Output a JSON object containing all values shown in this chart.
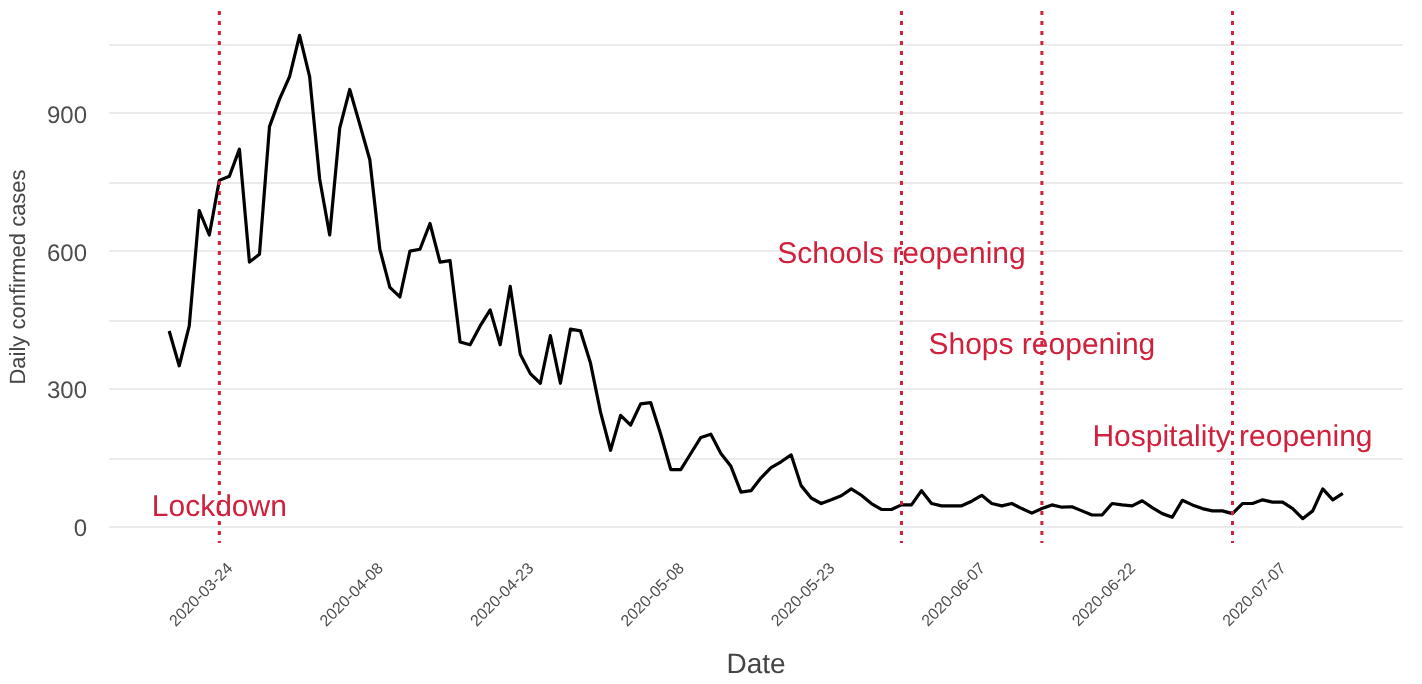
{
  "chart_data": {
    "type": "line",
    "xlabel": "Date",
    "ylabel": "Daily confirmed cases",
    "x": [
      "2020-03-18",
      "2020-03-19",
      "2020-03-20",
      "2020-03-21",
      "2020-03-22",
      "2020-03-23",
      "2020-03-24",
      "2020-03-25",
      "2020-03-26",
      "2020-03-27",
      "2020-03-28",
      "2020-03-29",
      "2020-03-30",
      "2020-03-31",
      "2020-04-01",
      "2020-04-02",
      "2020-04-03",
      "2020-04-04",
      "2020-04-05",
      "2020-04-06",
      "2020-04-07",
      "2020-04-08",
      "2020-04-09",
      "2020-04-10",
      "2020-04-11",
      "2020-04-12",
      "2020-04-13",
      "2020-04-14",
      "2020-04-15",
      "2020-04-16",
      "2020-04-17",
      "2020-04-18",
      "2020-04-19",
      "2020-04-20",
      "2020-04-21",
      "2020-04-22",
      "2020-04-23",
      "2020-04-24",
      "2020-04-25",
      "2020-04-26",
      "2020-04-27",
      "2020-04-28",
      "2020-04-29",
      "2020-04-30",
      "2020-05-01",
      "2020-05-02",
      "2020-05-03",
      "2020-05-04",
      "2020-05-05",
      "2020-05-06",
      "2020-05-07",
      "2020-05-08",
      "2020-05-09",
      "2020-05-10",
      "2020-05-11",
      "2020-05-12",
      "2020-05-13",
      "2020-05-14",
      "2020-05-15",
      "2020-05-16",
      "2020-05-17",
      "2020-05-18",
      "2020-05-19",
      "2020-05-20",
      "2020-05-21",
      "2020-05-22",
      "2020-05-23",
      "2020-05-24",
      "2020-05-25",
      "2020-05-26",
      "2020-05-27",
      "2020-05-28",
      "2020-05-29",
      "2020-05-30",
      "2020-05-31",
      "2020-06-01",
      "2020-06-02",
      "2020-06-03",
      "2020-06-04",
      "2020-06-05",
      "2020-06-06",
      "2020-06-07",
      "2020-06-08",
      "2020-06-09",
      "2020-06-10",
      "2020-06-11",
      "2020-06-12",
      "2020-06-13",
      "2020-06-14",
      "2020-06-15",
      "2020-06-16",
      "2020-06-17",
      "2020-06-18",
      "2020-06-19",
      "2020-06-20",
      "2020-06-21",
      "2020-06-22",
      "2020-06-23",
      "2020-06-24",
      "2020-06-25",
      "2020-06-26",
      "2020-06-27",
      "2020-06-28",
      "2020-06-29",
      "2020-06-30",
      "2020-07-01",
      "2020-07-02",
      "2020-07-03",
      "2020-07-04",
      "2020-07-05",
      "2020-07-06",
      "2020-07-07",
      "2020-07-08",
      "2020-07-09",
      "2020-07-10",
      "2020-07-11",
      "2020-07-12",
      "2020-07-13"
    ],
    "series": [
      {
        "color": "#000000",
        "values": [
          427,
          351,
          438,
          689,
          636,
          755,
          764,
          823,
          577,
          594,
          872,
          932,
          981,
          1071,
          981,
          758,
          636,
          869,
          953,
          877,
          800,
          605,
          522,
          501,
          601,
          605,
          661,
          577,
          580,
          403,
          397,
          438,
          473,
          397,
          524,
          376,
          334,
          313,
          417,
          313,
          431,
          427,
          357,
          250,
          167,
          243,
          222,
          268,
          271,
          202,
          125,
          125,
          160,
          195,
          202,
          160,
          132,
          76,
          79,
          107,
          129,
          142,
          157,
          90,
          63,
          51,
          59,
          68,
          83,
          69,
          51,
          38,
          38,
          48,
          48,
          79,
          51,
          46,
          46,
          46,
          56,
          69,
          51,
          46,
          51,
          40,
          30,
          40,
          48,
          43,
          44,
          35,
          26,
          26,
          51,
          48,
          46,
          57,
          42,
          29,
          21,
          58,
          48,
          40,
          35,
          35,
          29,
          51,
          51,
          59,
          54,
          54,
          40,
          18,
          35,
          83,
          59,
          73
        ]
      }
    ],
    "xlim": [
      "2020-03-12",
      "2020-07-19"
    ],
    "xticks": [
      "2020-03-24",
      "2020-04-08",
      "2020-04-23",
      "2020-05-08",
      "2020-05-23",
      "2020-06-07",
      "2020-06-22",
      "2020-07-07"
    ],
    "ylim": [
      -35,
      1124
    ],
    "yticks": [
      0,
      {
        "value": 150,
        "label": null
      },
      300,
      {
        "value": 450,
        "label": null
      },
      600,
      {
        "value": 750,
        "label": null
      },
      900,
      {
        "value": 1050,
        "label": null
      }
    ],
    "grid": "y",
    "ref_lines": [
      {
        "axis": "x",
        "value": "2020-03-23",
        "color": "#d0203c",
        "line_style": "dotted"
      },
      {
        "axis": "x",
        "value": "2020-05-30",
        "color": "#d0203c",
        "line_style": "dotted"
      },
      {
        "axis": "x",
        "value": "2020-06-13",
        "color": "#d0203c",
        "line_style": "dotted"
      },
      {
        "axis": "x",
        "value": "2020-07-02",
        "color": "#d0203c",
        "line_style": "dotted"
      }
    ],
    "annotations": [
      {
        "text": "Lockdown",
        "x": "2020-03-23",
        "y": 43
      },
      {
        "text": "Schools reopening",
        "x": "2020-05-30",
        "y": 594
      },
      {
        "text": "Shops reopening",
        "x": "2020-06-13",
        "y": 397
      },
      {
        "text": "Hospitality reopening",
        "x": "2020-07-02",
        "y": 197
      }
    ]
  }
}
